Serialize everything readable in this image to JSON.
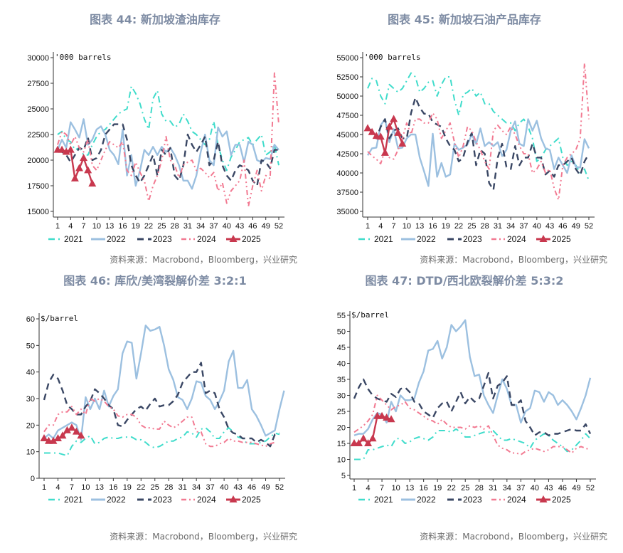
{
  "colors": {
    "2021": "#40dccb",
    "2022": "#9cc0e0",
    "2023": "#3a4764",
    "2024": "#f27a92",
    "2025": "#c8384e"
  },
  "chart_data": [
    {
      "type": "line",
      "title": "图表 44: 新加坡渣油库存",
      "unit": "'000 barrels",
      "source": "资料来源：Macrobond，Bloomberg，兴业研究",
      "ylim": [
        15000,
        30000
      ],
      "yticks": [
        15000,
        17500,
        20000,
        22500,
        25000,
        27500,
        30000
      ],
      "xticks": [
        1,
        4,
        7,
        10,
        13,
        16,
        19,
        22,
        25,
        28,
        31,
        34,
        37,
        40,
        43,
        46,
        49,
        52
      ],
      "legend": "bottom",
      "series": [
        {
          "name": "2021",
          "values": [
            22500,
            22800,
            22000,
            21800,
            21000,
            21200,
            20500,
            20500,
            21500,
            22300,
            22800,
            23000,
            23500,
            24000,
            24500,
            24800,
            25000,
            27200,
            26500,
            25500,
            24000,
            23000,
            26000,
            26800,
            24500,
            23800,
            23800,
            23200,
            23500,
            24500,
            23800,
            22800,
            22500,
            22000,
            21500,
            22000,
            23800,
            21500,
            20000,
            19000,
            20300,
            21000,
            21800,
            22000,
            22200,
            21500,
            22000,
            22500,
            20500,
            20800,
            21500,
            19500
          ]
        },
        {
          "name": "2022",
          "values": [
            21000,
            22000,
            21200,
            23700,
            23000,
            22200,
            24000,
            21500,
            22000,
            23000,
            23300,
            22500,
            21000,
            20500,
            19600,
            23000,
            18500,
            20500,
            17500,
            19000,
            21000,
            20500,
            21300,
            20500,
            21300,
            20800,
            21200,
            20500,
            19500,
            18000,
            18000,
            17200,
            18500,
            20800,
            22500,
            20000,
            19500,
            23200,
            22300,
            22800,
            20500,
            21500,
            21500,
            19800,
            21800,
            21500,
            20000,
            19800,
            20200,
            20100,
            21500,
            21000
          ]
        },
        {
          "name": "2023",
          "values": [
            21000,
            20800,
            20500,
            19800,
            20500,
            21200,
            21000,
            22200,
            20000,
            20200,
            21000,
            22500,
            23000,
            23500,
            23500,
            23500,
            22000,
            19500,
            18500,
            17800,
            18500,
            19500,
            20500,
            18500,
            21000,
            20500,
            21200,
            18500,
            18000,
            19500,
            22500,
            21500,
            20800,
            21500,
            22300,
            19500,
            20000,
            21800,
            19500,
            18500,
            18000,
            19000,
            19500,
            19300,
            19000,
            18000,
            17500,
            20000,
            19800,
            19200,
            21000,
            21000
          ]
        },
        {
          "name": "2024",
          "values": [
            21500,
            22800,
            22500,
            21500,
            22300,
            21200,
            20800,
            22000,
            19500,
            19000,
            20000,
            21000,
            21800,
            21500,
            21200,
            21800,
            19000,
            18500,
            19800,
            18800,
            18000,
            16000,
            17500,
            18500,
            20000,
            22300,
            20000,
            19500,
            18300,
            19500,
            19800,
            20000,
            19000,
            19200,
            18800,
            18300,
            18800,
            17000,
            17800,
            15800,
            17000,
            17500,
            18000,
            20000,
            15500,
            17500,
            19000,
            17000,
            18500,
            18200,
            28500,
            23500
          ]
        },
        {
          "name": "2025",
          "values": [
            21000,
            21000,
            20800,
            21000,
            18200,
            19200,
            20200,
            19000,
            17700
          ]
        }
      ]
    },
    {
      "type": "line",
      "title": "图表 45: 新加坡石油产品库存",
      "unit": "'000 barrels",
      "source": "资料来源：Macrobond，Bloomberg，兴业研究",
      "ylim": [
        35000,
        55000
      ],
      "yticks": [
        35000,
        37500,
        40000,
        42500,
        45000,
        47500,
        50000,
        52500,
        55000
      ],
      "xticks": [
        1,
        4,
        7,
        10,
        13,
        16,
        19,
        22,
        25,
        28,
        31,
        34,
        37,
        40,
        43,
        46,
        49,
        52
      ],
      "legend": "bottom",
      "series": [
        {
          "name": "2021",
          "values": [
            51000,
            52300,
            52000,
            50000,
            49000,
            51500,
            51000,
            50500,
            51000,
            52000,
            53000,
            52500,
            50500,
            51000,
            51800,
            52000,
            50000,
            51500,
            52500,
            52500,
            49500,
            47500,
            50200,
            50500,
            51000,
            50000,
            50500,
            49000,
            49000,
            48000,
            47500,
            47000,
            46500,
            46500,
            45500,
            46500,
            47000,
            46000,
            44500,
            41500,
            42000,
            43000,
            43500,
            44000,
            44500,
            42000,
            41000,
            41500,
            41000,
            40000,
            40500,
            39000
          ]
        },
        {
          "name": "2022",
          "values": [
            42300,
            43200,
            43300,
            46200,
            47000,
            44000,
            45700,
            43200,
            43300,
            44500,
            45000,
            45000,
            42000,
            40200,
            38300,
            45100,
            39500,
            41300,
            39500,
            39800,
            43800,
            43000,
            43300,
            43700,
            45000,
            43800,
            45800,
            43500,
            44000,
            43500,
            44000,
            42200,
            43000,
            45500,
            46700,
            43800,
            43500,
            47000,
            45500,
            46800,
            44500,
            43200,
            43000,
            40500,
            42000,
            41000,
            40000,
            42300,
            40800,
            40700,
            44400,
            43200
          ]
        },
        {
          "name": "2023",
          "values": [
            45800,
            45500,
            44500,
            46000,
            47000,
            44500,
            45500,
            45800,
            44500,
            44500,
            47800,
            49800,
            48500,
            47700,
            47700,
            46600,
            46300,
            46000,
            44500,
            43500,
            43000,
            41500,
            42000,
            44000,
            45200,
            41000,
            43000,
            42500,
            38700,
            37800,
            42000,
            43800,
            40800,
            40500,
            43500,
            41000,
            42000,
            42000,
            43800,
            42000,
            42000,
            39800,
            40300,
            39500,
            41000,
            41000,
            41500,
            42000,
            40500,
            39700,
            41500,
            42500
          ]
        },
        {
          "name": "2024",
          "values": [
            42800,
            42200,
            41800,
            41200,
            43000,
            42000,
            41800,
            43000,
            44500,
            46500,
            45000,
            47000,
            47000,
            46500,
            46500,
            47800,
            47000,
            44500,
            45500,
            46500,
            44000,
            42000,
            43500,
            46000,
            45500,
            44000,
            43000,
            41500,
            40500,
            45500,
            46200,
            45500,
            45000,
            46000,
            45000,
            43500,
            42500,
            42500,
            40000,
            40500,
            41500,
            40000,
            40500,
            38000,
            36500,
            41000,
            42000,
            42500,
            43000,
            44500,
            54300,
            47000
          ]
        },
        {
          "name": "2025",
          "values": [
            45800,
            45300,
            44800,
            44700,
            42600,
            46000,
            47000,
            45200,
            43800
          ]
        }
      ]
    },
    {
      "type": "line",
      "title": "图表 46: 库欣/美湾裂解价差 3:2:1",
      "unit": "$/barrel",
      "source": "资料来源：Macrobond，Bloomberg，兴业研究",
      "ylim": [
        0,
        60
      ],
      "yticks": [
        0,
        10,
        20,
        30,
        40,
        50,
        60
      ],
      "xticks": [
        1,
        4,
        7,
        10,
        13,
        16,
        19,
        22,
        25,
        28,
        31,
        34,
        37,
        40,
        43,
        46,
        49,
        52
      ],
      "legend": "bottom",
      "series": [
        {
          "name": "2021",
          "values": [
            9.5,
            9.5,
            9.5,
            9.5,
            9,
            8.5,
            12,
            14,
            13.5,
            15,
            16,
            13,
            13.5,
            15,
            15.5,
            15,
            15,
            15.5,
            15.5,
            15.5,
            14.5,
            14.5,
            13.5,
            12,
            11.5,
            12,
            13,
            14,
            14,
            15,
            15.5,
            17.5,
            17,
            15.5,
            18.5,
            19,
            17.5,
            15,
            15,
            17.5,
            19,
            17.5,
            15.5,
            15,
            13,
            13,
            13,
            13.5,
            14,
            15.5,
            17,
            16.5
          ]
        },
        {
          "name": "2022",
          "values": [
            15,
            16.5,
            15,
            18,
            19,
            20,
            21,
            20,
            14.5,
            30.5,
            26,
            30,
            26,
            33,
            27,
            31,
            33.5,
            47,
            51.5,
            51,
            37.5,
            47,
            57.5,
            55.5,
            56,
            57,
            50,
            41,
            37,
            30.5,
            29.5,
            26,
            30,
            36.5,
            36,
            31,
            29.5,
            26,
            29,
            33,
            44,
            48,
            34,
            34,
            37,
            26,
            23.5,
            20,
            16,
            17,
            18,
            26,
            33
          ]
        },
        {
          "name": "2023",
          "values": [
            29.5,
            36,
            39,
            37.5,
            33,
            27.5,
            26,
            24,
            24,
            27,
            29,
            33.5,
            32,
            30,
            27.5,
            26,
            20,
            19.5,
            22,
            24,
            26,
            27,
            25.5,
            28,
            30,
            27,
            27.5,
            27.5,
            29,
            31.5,
            36,
            38,
            40,
            40,
            43.5,
            32,
            33,
            32,
            26,
            23,
            18.5,
            17,
            16.5,
            15,
            15,
            15,
            13.5,
            14.5,
            13.5,
            12,
            16.5,
            17
          ]
        },
        {
          "name": "2024",
          "values": [
            17.5,
            20,
            20,
            24,
            25,
            25,
            27,
            24,
            26,
            24,
            30,
            29,
            30,
            29,
            27,
            26,
            23.5,
            23,
            24,
            24,
            23,
            20,
            19,
            19,
            18.5,
            18.5,
            21.5,
            20,
            19,
            20,
            21.5,
            23,
            23,
            17.5,
            17.5,
            13,
            12,
            12,
            13,
            13.5,
            15,
            14,
            14,
            13.5,
            13.5,
            13.5,
            13,
            12.5,
            12,
            13,
            13.5
          ]
        },
        {
          "name": "2025",
          "values": [
            15,
            14,
            14,
            15,
            16,
            18,
            19,
            17.5,
            16
          ]
        }
      ]
    },
    {
      "type": "line",
      "title": "图表 47: DTD/西北欧裂解价差 5:3:2",
      "unit": "$/barrel",
      "source": "资料来源：Macrobond，Bloomberg，兴业研究",
      "ylim": [
        5,
        55
      ],
      "yticks": [
        5,
        10,
        15,
        20,
        25,
        30,
        35,
        40,
        45,
        50,
        55
      ],
      "xticks": [
        1,
        4,
        7,
        10,
        13,
        16,
        19,
        22,
        25,
        28,
        31,
        34,
        37,
        40,
        43,
        46,
        49,
        52
      ],
      "legend": "bottom",
      "series": [
        {
          "name": "2021",
          "values": [
            10,
            10,
            10,
            13,
            13,
            13.5,
            14,
            14.5,
            14,
            16.5,
            16.5,
            15,
            15.5,
            16.5,
            17,
            16.5,
            16,
            17,
            19,
            19,
            19,
            18.5,
            19.5,
            18.5,
            17,
            17,
            17.5,
            18,
            18.5,
            18.5,
            19,
            17.5,
            16,
            16,
            16.5,
            16,
            15.5,
            15,
            13.5,
            16,
            17,
            18,
            17.5,
            16,
            15,
            14,
            12.5,
            13,
            14.5,
            16,
            18,
            16.5
          ]
        },
        {
          "name": "2022",
          "values": [
            17.5,
            18,
            18,
            19.5,
            22.5,
            24.5,
            24,
            21.5,
            28,
            25,
            30,
            28.5,
            28.5,
            29,
            34,
            37.5,
            44,
            44.5,
            47,
            41.5,
            45,
            52,
            50,
            51.5,
            53.5,
            42,
            36,
            36.5,
            30,
            27,
            24.5,
            30,
            35,
            32,
            27,
            27,
            21.5,
            25,
            26,
            31.5,
            31,
            28,
            31,
            30,
            27,
            28.5,
            27,
            25,
            22.5,
            26,
            30,
            35.5
          ]
        },
        {
          "name": "2023",
          "values": [
            29,
            32.5,
            35,
            32,
            30,
            29,
            28.5,
            28,
            30.5,
            29.5,
            32,
            32.5,
            31,
            28,
            27.5,
            25,
            24,
            23,
            26,
            27.5,
            28,
            25,
            28,
            31,
            27.5,
            29.5,
            28,
            29,
            33,
            37,
            29,
            33,
            34,
            36,
            27,
            27,
            28.5,
            22,
            20,
            17.5,
            18.5,
            18.5,
            17.5,
            18,
            18,
            18.5,
            19,
            19.5,
            19,
            19,
            21,
            18
          ]
        },
        {
          "name": "2024",
          "values": [
            18.5,
            19.5,
            20.5,
            22,
            24,
            30,
            28.5,
            27,
            25.5,
            26.5,
            27,
            28,
            26,
            25.5,
            24.5,
            23.5,
            22.5,
            22,
            21,
            22.5,
            21,
            20,
            20,
            20,
            19.5,
            20.5,
            20,
            20.5,
            19.5,
            20.5,
            17.5,
            14.5,
            13.5,
            13,
            12,
            12,
            11.5,
            12.5,
            13,
            13.5,
            13,
            12.5,
            13,
            14,
            14,
            14,
            13,
            12,
            13.5,
            14,
            13.5,
            13
          ]
        },
        {
          "name": "2025",
          "values": [
            15,
            15,
            16.5,
            15,
            16.5,
            23.5,
            23.5,
            23,
            22.5
          ]
        }
      ]
    }
  ]
}
